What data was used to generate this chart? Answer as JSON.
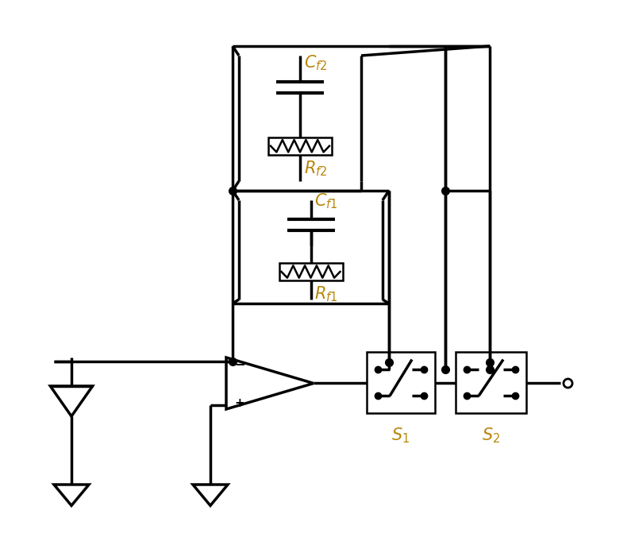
{
  "bg_color": "#ffffff",
  "line_color": "#000000",
  "text_color": "#b8860b",
  "lw": 2.5,
  "fig_w": 8.0,
  "fig_h": 6.81,
  "dpi": 100
}
